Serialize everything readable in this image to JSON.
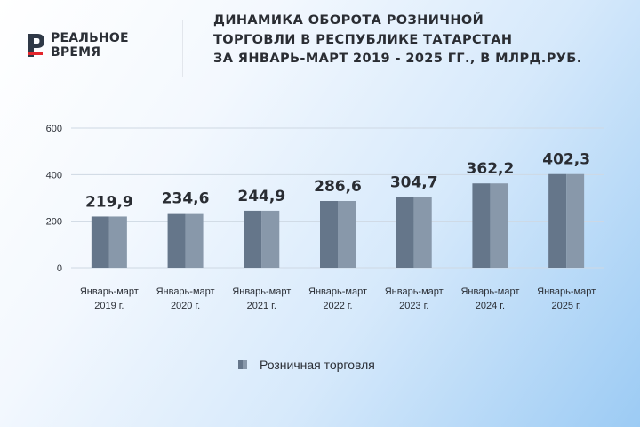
{
  "logo": {
    "line1": "РЕАЛЬНОЕ",
    "line2": "ВРЕМЯ",
    "colors": {
      "accent": "#e3262c",
      "dark": "#2f3947"
    }
  },
  "title": {
    "lines": [
      "ДИНАМИКА ОБОРОТА РОЗНИЧНОЙ",
      "ТОРГОВЛИ В РЕСПУБЛИКЕ ТАТАРСТАН",
      "ЗА ЯНВАРЬ-МАРТ 2019 - 2025 ГГ., В МЛРД.РУБ."
    ]
  },
  "chart_data": {
    "type": "bar",
    "title": "ДИНАМИКА ОБОРОТА РОЗНИЧНОЙ ТОРГОВЛИ В РЕСПУБЛИКЕ ТАТАРСТАН ЗА ЯНВАРЬ-МАРТ 2019 - 2025 ГГ., В МЛРД.РУБ.",
    "categories": [
      [
        "Январь-март",
        "2019 г."
      ],
      [
        "Январь-март",
        "2020 г."
      ],
      [
        "Январь-март",
        "2021 г."
      ],
      [
        "Январь-март",
        "2022 г."
      ],
      [
        "Январь-март",
        "2023 г."
      ],
      [
        "Январь-март",
        "2024 г."
      ],
      [
        "Январь-март",
        "2025 г."
      ]
    ],
    "series": [
      {
        "name": "Розничная торговля",
        "values": [
          219.9,
          234.6,
          244.9,
          286.6,
          304.7,
          362.2,
          402.3
        ],
        "data_labels": [
          "219,9",
          "234,6",
          "244,9",
          "286,6",
          "304,7",
          "362,2",
          "402,3"
        ],
        "color_dark": "#65768a",
        "color_light": "#8898aa"
      }
    ],
    "ylim": [
      0,
      600
    ],
    "yticks": [
      0,
      200,
      400,
      600
    ],
    "grid": true,
    "legend_position": "bottom-center"
  },
  "legend": {
    "label": "Розничная торговля"
  }
}
